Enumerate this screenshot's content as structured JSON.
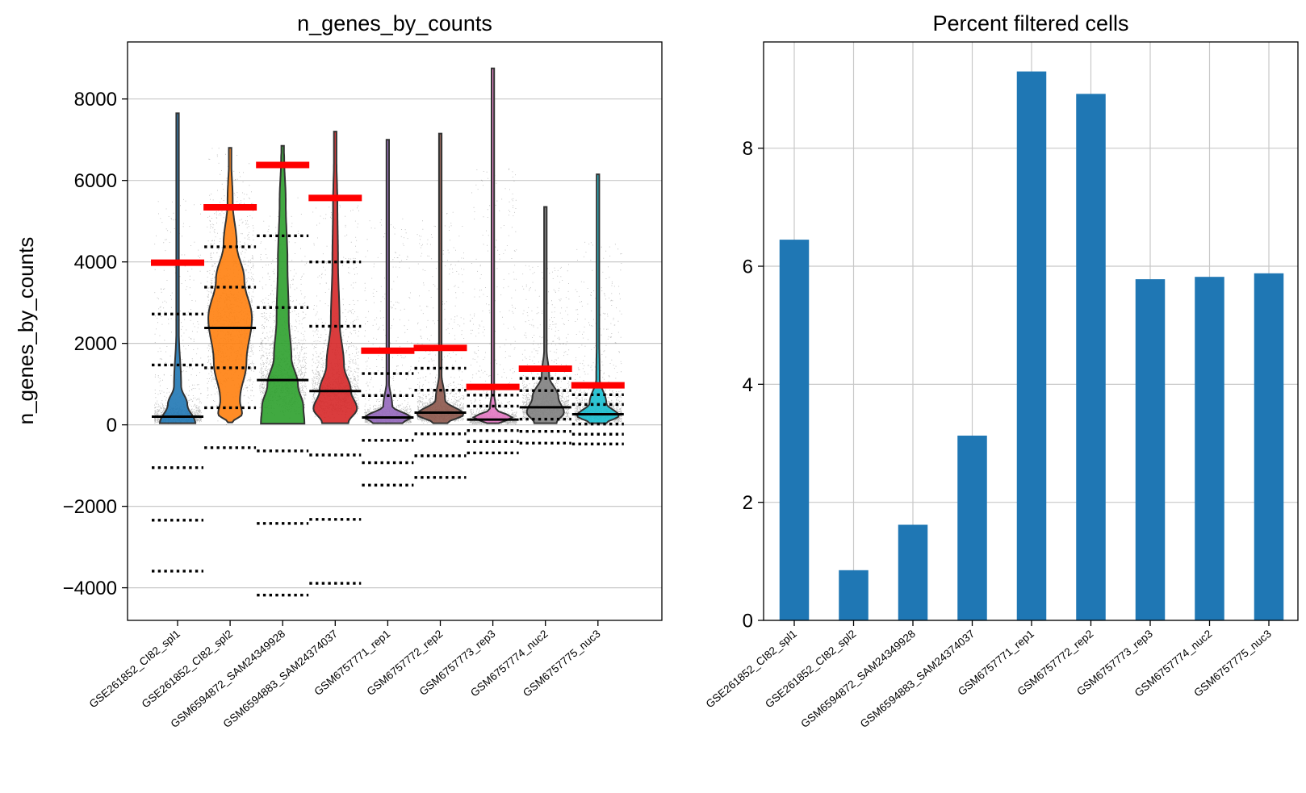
{
  "chart_data": [
    {
      "type": "violin",
      "title": "n_genes_by_counts",
      "xlabel": "",
      "ylabel": "n_genes_by_counts",
      "ylim": [
        -4800,
        9400
      ],
      "yticks": [
        -4000,
        -2000,
        0,
        2000,
        4000,
        6000,
        8000
      ],
      "ytick_labels": [
        "−4000",
        "−2000",
        "0",
        "2000",
        "4000",
        "6000",
        "8000"
      ],
      "grid": "horizontal",
      "categories": [
        "GSE261852_CI82_spl1",
        "GSE261852_CI82_spl2",
        "GSM6594872_SAM24349928",
        "GSM6594883_SAM24374037",
        "GSM6757771_rep1",
        "GSM6757772_rep2",
        "GSM6757773_rep3",
        "GSM6757774_nuc2",
        "GSM6757775_nuc3"
      ],
      "colors": [
        "#1f77b4",
        "#ff7f0e",
        "#2ca02c",
        "#d62728",
        "#9467bd",
        "#8c564b",
        "#e377c2",
        "#7f7f7f",
        "#17becf"
      ],
      "max": [
        7650,
        6800,
        6850,
        7200,
        7000,
        7150,
        8750,
        5350,
        6150
      ],
      "median": [
        200,
        2380,
        1100,
        830,
        180,
        300,
        130,
        430,
        260
      ],
      "upper_threshold": [
        3980,
        5340,
        6380,
        5570,
        1820,
        1890,
        930,
        1380,
        970
      ],
      "threshold_color": "#ff0000",
      "mad_levels": [
        [
          2720,
          1470,
          -1050,
          -2340,
          -3590
        ],
        [
          4370,
          3380,
          1400,
          420,
          -560
        ],
        [
          4640,
          2880,
          -640,
          -2420,
          -4180
        ],
        [
          4000,
          2420,
          -740,
          -2320,
          -3890
        ],
        [
          1260,
          720,
          -380,
          -930,
          -1480
        ],
        [
          1390,
          850,
          -220,
          -760,
          -1290
        ],
        [
          730,
          460,
          -140,
          -410,
          -690
        ],
        [
          1140,
          840,
          140,
          -160,
          -450
        ],
        [
          740,
          500,
          20,
          -230,
          -470
        ]
      ]
    },
    {
      "type": "bar",
      "title": "Percent filtered cells",
      "xlabel": "",
      "ylabel": "",
      "ylim": [
        0,
        9.8
      ],
      "yticks": [
        0,
        2,
        4,
        6,
        8
      ],
      "ytick_labels": [
        "0",
        "2",
        "4",
        "6",
        "8"
      ],
      "grid": "both",
      "color": "#1f77b4",
      "categories": [
        "GSE261852_CI82_spl1",
        "GSE261852_CI82_spl2",
        "GSM6594872_SAM24349928",
        "GSM6594883_SAM24374037",
        "GSM6757771_rep1",
        "GSM6757772_rep2",
        "GSM6757773_rep3",
        "GSM6757774_nuc2",
        "GSM6757775_nuc3"
      ],
      "values": [
        6.45,
        0.85,
        1.62,
        3.13,
        9.3,
        8.92,
        5.78,
        5.82,
        5.88
      ]
    }
  ]
}
